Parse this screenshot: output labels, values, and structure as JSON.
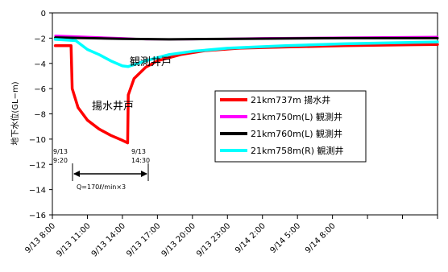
{
  "chart_data": {
    "type": "line",
    "title": "",
    "xlabel": "",
    "ylabel": "地下水位(GL−m)",
    "ylim": [
      -16,
      0
    ],
    "yticks": [
      0,
      -2,
      -4,
      -6,
      -8,
      -10,
      -12,
      -14,
      -16
    ],
    "ytick_labels": [
      "0",
      "−2",
      "−4",
      "−6",
      "−8",
      "−10",
      "−12",
      "−14",
      "−16"
    ],
    "xlim_hours": [
      0,
      33
    ],
    "xticks": [
      0,
      3,
      6,
      9,
      12,
      15,
      18,
      21,
      24,
      27,
      30,
      33
    ],
    "xtick_labels": [
      "9/13 8:00",
      "9/13 11:00",
      "9/13 14:00",
      "9/13 17:00",
      "9/13 20:00",
      "9/13 23:00",
      "9/14 2:00",
      "9/14 5:00",
      "9/14 8:00"
    ],
    "xtick_label_hours": [
      0,
      3,
      6,
      9,
      12,
      15,
      18,
      21,
      24
    ],
    "legend_placement": "center-right",
    "series": [
      {
        "name": "21km737m 揚水井",
        "color": "#ff0000",
        "width": 3.5,
        "points": [
          [
            0.25,
            -2.6
          ],
          [
            1.6,
            -2.6
          ],
          [
            1.7,
            -6.0
          ],
          [
            2.2,
            -7.5
          ],
          [
            3,
            -8.5
          ],
          [
            4,
            -9.2
          ],
          [
            5,
            -9.7
          ],
          [
            6,
            -10.1
          ],
          [
            6.45,
            -10.3
          ],
          [
            6.5,
            -6.5
          ],
          [
            7,
            -5.2
          ],
          [
            8,
            -4.3
          ],
          [
            9,
            -3.8
          ],
          [
            11,
            -3.3
          ],
          [
            13,
            -3.0
          ],
          [
            16,
            -2.8
          ],
          [
            20,
            -2.7
          ],
          [
            25,
            -2.6
          ],
          [
            33,
            -2.5
          ]
        ]
      },
      {
        "name": "21km750m(L) 観測井",
        "color": "#ff00ff",
        "width": 2.5,
        "points": [
          [
            0.25,
            -1.8
          ],
          [
            3,
            -1.9
          ],
          [
            6,
            -2.0
          ],
          [
            8,
            -2.1
          ],
          [
            12,
            -2.1
          ],
          [
            18,
            -2.0
          ],
          [
            25,
            -1.95
          ],
          [
            33,
            -1.9
          ]
        ]
      },
      {
        "name": "21km760m(L) 観測井",
        "color": "#000000",
        "width": 3,
        "points": [
          [
            0.25,
            -1.95
          ],
          [
            6,
            -2.05
          ],
          [
            10,
            -2.1
          ],
          [
            16,
            -2.05
          ],
          [
            25,
            -2.0
          ],
          [
            33,
            -2.0
          ]
        ]
      },
      {
        "name": "21km758m(R) 観測井",
        "color": "#00ffff",
        "width": 3.5,
        "points": [
          [
            0.25,
            -2.1
          ],
          [
            2,
            -2.2
          ],
          [
            3,
            -2.9
          ],
          [
            4,
            -3.3
          ],
          [
            5,
            -3.8
          ],
          [
            6,
            -4.2
          ],
          [
            6.5,
            -4.25
          ],
          [
            8,
            -3.8
          ],
          [
            10,
            -3.3
          ],
          [
            12,
            -3.05
          ],
          [
            15,
            -2.8
          ],
          [
            20,
            -2.6
          ],
          [
            25,
            -2.45
          ],
          [
            33,
            -2.3
          ]
        ]
      }
    ],
    "annotations": {
      "observation_label": "観測井戸",
      "pumping_label": "揚水井戸",
      "start_label_date": "9/13",
      "start_label_time": "9:20",
      "end_label_date": "9/13",
      "end_label_time": "14:30",
      "flow_label": "Q=170ℓ/min×3"
    }
  }
}
